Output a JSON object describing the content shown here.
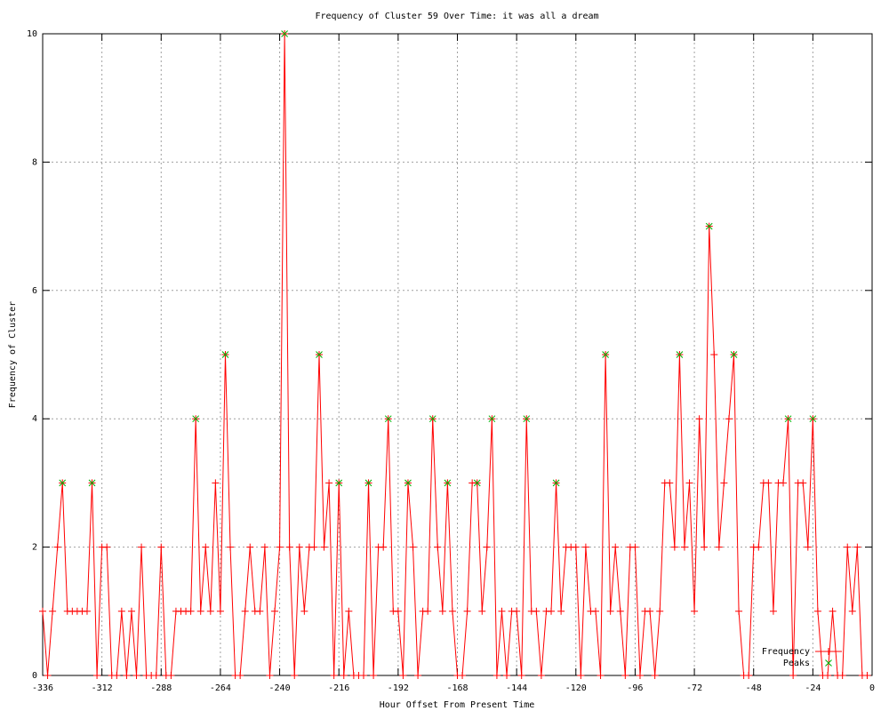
{
  "chart_data": {
    "type": "line",
    "title": "Frequency of Cluster 59 Over Time: it was all a dream",
    "x_label": "Hour Offset From Present Time",
    "y_label": "Frequency of Cluster",
    "xlim": [
      -336,
      0
    ],
    "ylim": [
      0,
      10
    ],
    "xticks": [
      -336,
      -312,
      -288,
      -264,
      -240,
      -216,
      -192,
      -168,
      -144,
      -120,
      -96,
      -72,
      -48,
      -24,
      0
    ],
    "yticks": [
      0,
      2,
      4,
      6,
      8,
      10
    ],
    "grid": true,
    "legend": "bottom-right",
    "series": [
      {
        "name": "Frequency",
        "color": "#ff0000",
        "style": "linespoints",
        "x": [
          -336,
          -334,
          -332,
          -330,
          -328,
          -326,
          -324,
          -322,
          -320,
          -318,
          -316,
          -314,
          -312,
          -310,
          -308,
          -306,
          -304,
          -302,
          -300,
          -298,
          -296,
          -294,
          -292,
          -290,
          -288,
          -286,
          -284,
          -282,
          -280,
          -278,
          -276,
          -274,
          -272,
          -270,
          -268,
          -266,
          -264,
          -262,
          -260,
          -258,
          -256,
          -254,
          -252,
          -250,
          -248,
          -246,
          -244,
          -242,
          -240,
          -238,
          -236,
          -234,
          -232,
          -230,
          -228,
          -226,
          -224,
          -222,
          -220,
          -218,
          -216,
          -214,
          -212,
          -210,
          -208,
          -206,
          -204,
          -202,
          -200,
          -198,
          -196,
          -194,
          -192,
          -190,
          -188,
          -186,
          -184,
          -182,
          -180,
          -178,
          -176,
          -174,
          -172,
          -170,
          -168,
          -166,
          -164,
          -162,
          -160,
          -158,
          -156,
          -154,
          -152,
          -150,
          -148,
          -146,
          -144,
          -142,
          -140,
          -138,
          -136,
          -134,
          -132,
          -130,
          -128,
          -126,
          -124,
          -122,
          -120,
          -118,
          -116,
          -114,
          -112,
          -110,
          -108,
          -106,
          -104,
          -102,
          -100,
          -98,
          -96,
          -94,
          -92,
          -90,
          -88,
          -86,
          -84,
          -82,
          -80,
          -78,
          -76,
          -74,
          -72,
          -70,
          -68,
          -66,
          -64,
          -62,
          -60,
          -58,
          -56,
          -54,
          -52,
          -50,
          -48,
          -46,
          -44,
          -42,
          -40,
          -38,
          -36,
          -34,
          -32,
          -30,
          -28,
          -26,
          -24,
          -22,
          -20,
          -18,
          -16,
          -14,
          -12,
          -10,
          -8,
          -6,
          -4,
          -2
        ],
        "values": [
          1,
          0,
          1,
          2,
          3,
          1,
          1,
          1,
          1,
          1,
          3,
          0,
          2,
          2,
          0,
          0,
          1,
          0,
          1,
          0,
          2,
          0,
          0,
          0,
          2,
          0,
          0,
          1,
          1,
          1,
          1,
          4,
          1,
          2,
          1,
          3,
          1,
          5,
          2,
          0,
          0,
          1,
          2,
          1,
          1,
          2,
          0,
          1,
          2,
          10,
          2,
          0,
          2,
          1,
          2,
          2,
          5,
          2,
          3,
          0,
          3,
          0,
          1,
          0,
          0,
          0,
          3,
          0,
          2,
          2,
          4,
          1,
          1,
          0,
          3,
          2,
          0,
          1,
          1,
          4,
          2,
          1,
          3,
          1,
          0,
          0,
          1,
          3,
          3,
          1,
          2,
          4,
          0,
          1,
          0,
          1,
          1,
          0,
          4,
          1,
          1,
          0,
          1,
          1,
          3,
          1,
          2,
          2,
          2,
          0,
          2,
          1,
          1,
          0,
          5,
          1,
          2,
          1,
          0,
          2,
          2,
          0,
          1,
          1,
          0,
          1,
          3,
          3,
          2,
          5,
          2,
          3,
          1,
          4,
          2,
          7,
          5,
          2,
          3,
          4,
          5,
          1,
          0,
          0,
          2,
          2,
          3,
          3,
          1,
          3,
          3,
          4,
          0,
          3,
          3,
          2,
          4,
          1,
          0,
          0,
          1,
          0,
          0,
          2,
          1,
          2,
          0,
          0
        ]
      },
      {
        "name": "Peaks",
        "color": "#00b000",
        "style": "points",
        "x": [
          -328,
          -316,
          -274,
          -262,
          -238,
          -224,
          -216,
          -204,
          -196,
          -188,
          -178,
          -172,
          -160,
          -154,
          -140,
          -128,
          -108,
          -78,
          -66,
          -56,
          -34,
          -24
        ],
        "values": [
          3,
          3,
          4,
          5,
          10,
          5,
          3,
          3,
          4,
          3,
          4,
          3,
          3,
          4,
          4,
          3,
          5,
          5,
          7,
          5,
          4,
          4
        ]
      }
    ]
  }
}
